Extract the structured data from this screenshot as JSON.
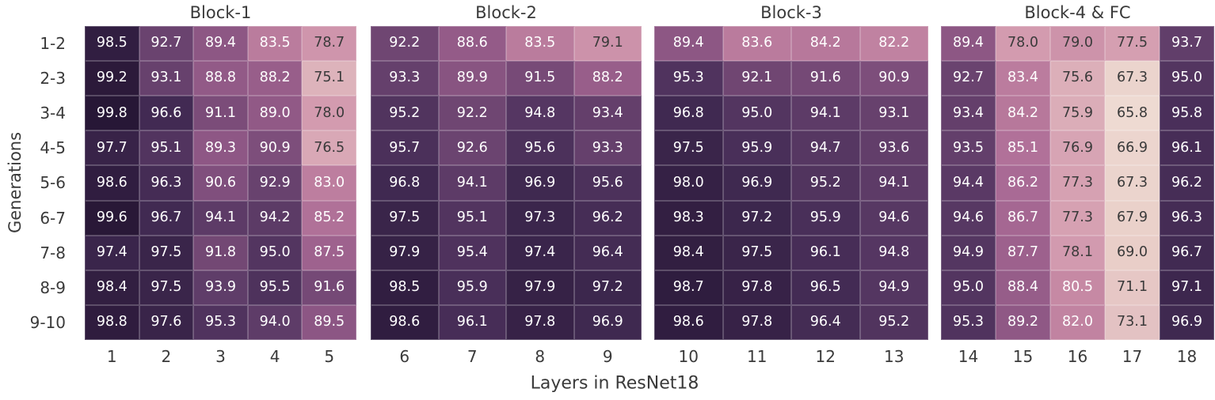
{
  "figure": {
    "background_color": "#ffffff",
    "label_color": "#3a3a3a"
  },
  "chart_data": {
    "type": "heatmap",
    "xlabel": "Layers in ResNet18",
    "ylabel": "Generations",
    "row_labels": [
      "1-2",
      "2-3",
      "3-4",
      "4-5",
      "5-6",
      "6-7",
      "7-8",
      "8-9",
      "9-10"
    ],
    "value_range": [
      65.8,
      99.8
    ],
    "annotation": {
      "light_text_color": "#ffffff",
      "dark_text_color": "#3a3a3a",
      "white_text_min_value": 80
    },
    "colormap_stops": [
      [
        65.8,
        "#eedad2"
      ],
      [
        68.0,
        "#ead1ca"
      ],
      [
        70.0,
        "#e7cac6"
      ],
      [
        73.0,
        "#e3c3c3"
      ],
      [
        76.0,
        "#dbacb8"
      ],
      [
        78.0,
        "#d39baf"
      ],
      [
        80.0,
        "#c78ba5"
      ],
      [
        82.0,
        "#c183a1"
      ],
      [
        84.0,
        "#b8799c"
      ],
      [
        86.0,
        "#ab6b96"
      ],
      [
        88.0,
        "#9a5f8b"
      ],
      [
        90.0,
        "#875381"
      ],
      [
        92.0,
        "#714773"
      ],
      [
        94.0,
        "#5e3c68"
      ],
      [
        96.0,
        "#482e58"
      ],
      [
        97.0,
        "#3e284f"
      ],
      [
        98.0,
        "#352145"
      ],
      [
        99.0,
        "#2d1b3c"
      ],
      [
        100.0,
        "#261634"
      ]
    ],
    "heatmaps": [
      {
        "title": "Block-1",
        "x_tick_labels": [
          "1",
          "2",
          "3",
          "4",
          "5"
        ],
        "rows": [
          [
            98.5,
            92.7,
            89.4,
            83.5,
            78.7
          ],
          [
            99.2,
            93.1,
            88.8,
            88.2,
            75.1
          ],
          [
            99.8,
            96.6,
            91.1,
            89.0,
            78.0
          ],
          [
            97.7,
            95.1,
            89.3,
            90.9,
            76.5
          ],
          [
            98.6,
            96.3,
            90.6,
            92.9,
            83.0
          ],
          [
            99.6,
            96.7,
            94.1,
            94.2,
            85.2
          ],
          [
            97.4,
            97.5,
            91.8,
            95.0,
            87.5
          ],
          [
            98.4,
            97.5,
            93.9,
            95.5,
            91.6
          ],
          [
            98.8,
            97.6,
            95.3,
            94.0,
            89.5
          ]
        ]
      },
      {
        "title": "Block-2",
        "x_tick_labels": [
          "6",
          "7",
          "8",
          "9"
        ],
        "rows": [
          [
            92.2,
            88.6,
            83.5,
            79.1
          ],
          [
            93.3,
            89.9,
            91.5,
            88.2
          ],
          [
            95.2,
            92.2,
            94.8,
            93.4
          ],
          [
            95.7,
            92.6,
            95.6,
            93.3
          ],
          [
            96.8,
            94.1,
            96.9,
            95.6
          ],
          [
            97.5,
            95.1,
            97.3,
            96.2
          ],
          [
            97.9,
            95.4,
            97.4,
            96.4
          ],
          [
            98.5,
            95.9,
            97.9,
            97.2
          ],
          [
            98.6,
            96.1,
            97.8,
            96.9
          ]
        ]
      },
      {
        "title": "Block-3",
        "x_tick_labels": [
          "10",
          "11",
          "12",
          "13"
        ],
        "rows": [
          [
            89.4,
            83.6,
            84.2,
            82.2
          ],
          [
            95.3,
            92.1,
            91.6,
            90.9
          ],
          [
            96.8,
            95.0,
            94.1,
            93.1
          ],
          [
            97.5,
            95.9,
            94.7,
            93.6
          ],
          [
            98.0,
            96.9,
            95.2,
            94.1
          ],
          [
            98.3,
            97.2,
            95.9,
            94.6
          ],
          [
            98.4,
            97.5,
            96.1,
            94.8
          ],
          [
            98.7,
            97.8,
            96.5,
            94.9
          ],
          [
            98.6,
            97.8,
            96.4,
            95.2
          ]
        ]
      },
      {
        "title": "Block-4 & FC",
        "x_tick_labels": [
          "14",
          "15",
          "16",
          "17",
          "18"
        ],
        "rows": [
          [
            89.4,
            78.0,
            79.0,
            77.5,
            93.7
          ],
          [
            92.7,
            83.4,
            75.6,
            67.3,
            95.0
          ],
          [
            93.4,
            84.2,
            75.9,
            65.8,
            95.8
          ],
          [
            93.5,
            85.1,
            76.9,
            66.9,
            96.1
          ],
          [
            94.4,
            86.2,
            77.3,
            67.3,
            96.2
          ],
          [
            94.6,
            86.7,
            77.3,
            67.9,
            96.3
          ],
          [
            94.9,
            87.7,
            78.1,
            69.0,
            96.7
          ],
          [
            95.0,
            88.4,
            80.5,
            71.1,
            97.1
          ],
          [
            95.3,
            89.2,
            82.0,
            73.1,
            96.9
          ]
        ]
      }
    ]
  }
}
